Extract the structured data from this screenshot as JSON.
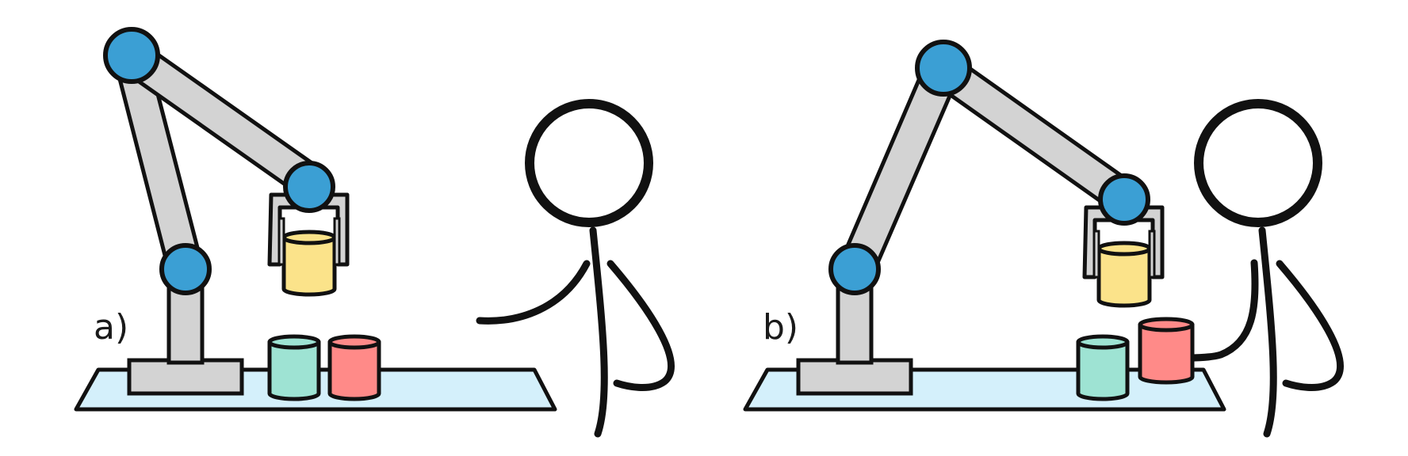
{
  "figure": {
    "panels": [
      {
        "id": "a",
        "label": "a)"
      },
      {
        "id": "b",
        "label": "b)"
      }
    ]
  },
  "colors": {
    "outline": "#111111",
    "table_surface": "#d4f0fb",
    "robot_link": "#d3d3d3",
    "robot_joint": "#3b9fd4",
    "cup_yellow": "#fbe38a",
    "cup_teal": "#9ee3d3",
    "cup_red": "#ff8a88",
    "background": "#ffffff"
  }
}
